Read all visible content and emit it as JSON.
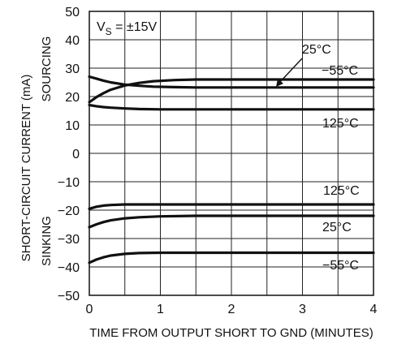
{
  "chart_data": {
    "type": "line",
    "xlabel": "TIME FROM OUTPUT SHORT TO GND (MINUTES)",
    "ylabel": "SHORT-CIRCUIT CURRENT (mA)",
    "region_labels": {
      "upper": "SOURCING",
      "lower": "SINKING"
    },
    "annotation": {
      "prefix": "V",
      "subscript": "S",
      "suffix": " = ±15V"
    },
    "xlim": [
      0,
      4
    ],
    "ylim": [
      -50,
      50
    ],
    "x_ticks": [
      "0",
      "1",
      "2",
      "3",
      "4"
    ],
    "y_ticks": [
      "50",
      "40",
      "30",
      "20",
      "10",
      "0",
      "−10",
      "−20",
      "−30",
      "−40",
      "−50"
    ],
    "grid": true,
    "line_color": "#111111",
    "series": [
      {
        "name": "25°C",
        "group": "sourcing",
        "x": [
          0,
          0.1,
          0.2,
          0.3,
          0.5,
          0.7,
          0.9,
          1.2,
          1.5,
          2,
          3,
          4
        ],
        "y": [
          18,
          19.8,
          21.2,
          22.4,
          23.9,
          24.8,
          25.4,
          25.8,
          26,
          26,
          26,
          26
        ]
      },
      {
        "name": "−55°C",
        "group": "sourcing",
        "x": [
          0,
          0.1,
          0.2,
          0.3,
          0.5,
          0.7,
          0.9,
          1.2,
          1.5,
          2,
          3,
          4
        ],
        "y": [
          27,
          26.3,
          25.6,
          25,
          24.2,
          23.8,
          23.5,
          23.3,
          23.2,
          23.2,
          23.2,
          23.2
        ]
      },
      {
        "name": "125°C",
        "group": "sourcing",
        "x": [
          0,
          0.1,
          0.2,
          0.3,
          0.5,
          0.7,
          1,
          1.5,
          2,
          3,
          4
        ],
        "y": [
          17,
          16.6,
          16.3,
          16.1,
          15.8,
          15.6,
          15.5,
          15.5,
          15.5,
          15.5,
          15.5
        ]
      },
      {
        "name": "125°C",
        "group": "sinking",
        "x": [
          0,
          0.1,
          0.2,
          0.3,
          0.5,
          0.7,
          1,
          1.5,
          2,
          3,
          4
        ],
        "y": [
          -19.5,
          -18.8,
          -18.4,
          -18.2,
          -18,
          -18,
          -18,
          -18,
          -18,
          -18,
          -18
        ]
      },
      {
        "name": "25°C",
        "group": "sinking",
        "x": [
          0,
          0.1,
          0.2,
          0.3,
          0.5,
          0.7,
          1,
          1.5,
          2,
          3,
          4
        ],
        "y": [
          -26,
          -25,
          -24.2,
          -23.6,
          -22.9,
          -22.5,
          -22.2,
          -22,
          -22,
          -22,
          -22
        ]
      },
      {
        "name": "−55°C",
        "group": "sinking",
        "x": [
          0,
          0.1,
          0.2,
          0.3,
          0.5,
          0.7,
          1,
          1.5,
          2,
          3,
          4
        ],
        "y": [
          -38.5,
          -37.4,
          -36.6,
          -36,
          -35.4,
          -35.1,
          -35,
          -35,
          -35,
          -35,
          -35
        ]
      }
    ]
  }
}
